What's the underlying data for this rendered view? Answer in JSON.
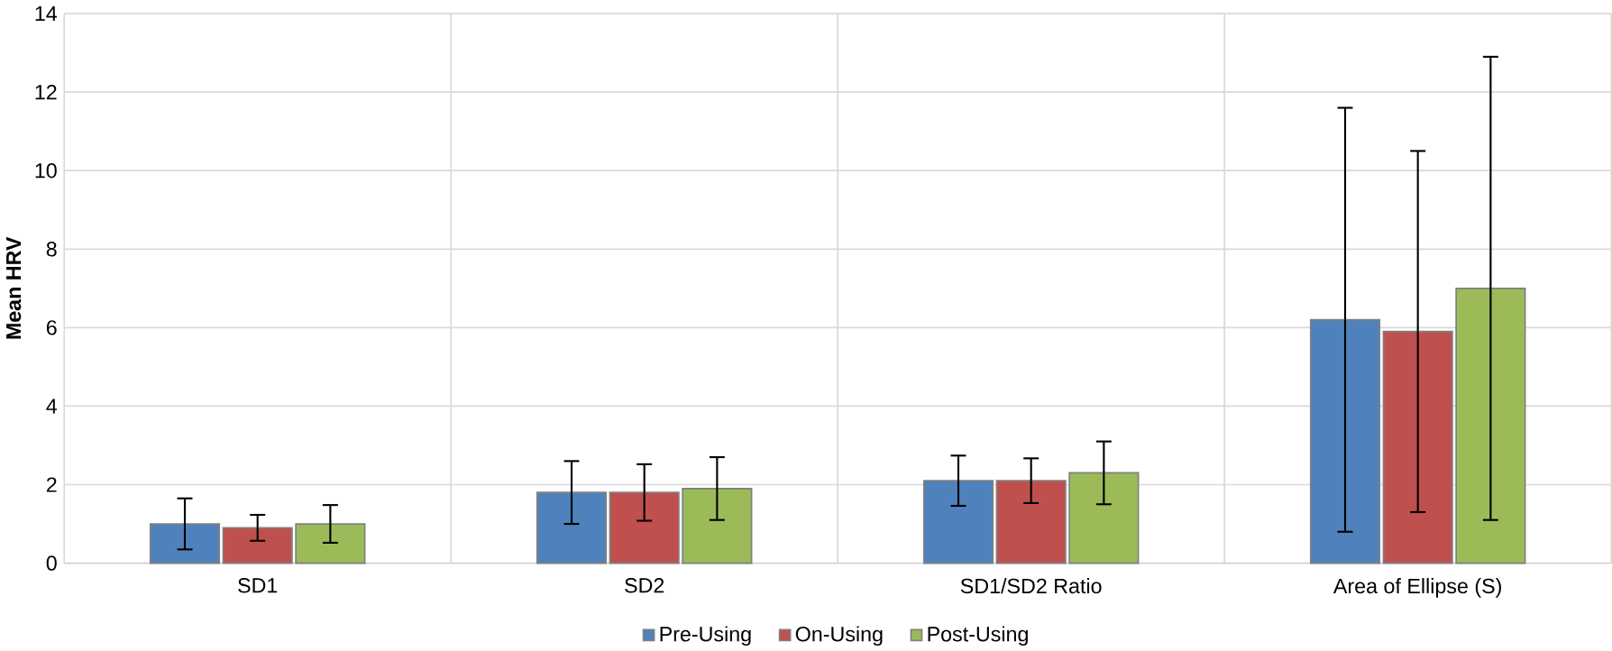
{
  "chart_data": {
    "type": "bar",
    "ylabel": "Mean HRV",
    "categories": [
      "SD1",
      "SD2",
      "SD1/SD2 Ratio",
      "Area of Ellipse (S)"
    ],
    "series": [
      {
        "name": "Pre-Using",
        "color": "#4f81bd",
        "values": [
          1.0,
          1.8,
          2.1,
          6.2
        ],
        "errors": [
          0.65,
          0.8,
          0.64,
          5.4
        ]
      },
      {
        "name": "On-Using",
        "color": "#c0504d",
        "values": [
          0.9,
          1.8,
          2.1,
          5.9
        ],
        "errors": [
          0.33,
          0.72,
          0.57,
          4.6
        ]
      },
      {
        "name": "Post-Using",
        "color": "#9bbb59",
        "values": [
          1.0,
          1.9,
          2.3,
          7.0
        ],
        "errors": [
          0.48,
          0.8,
          0.8,
          5.9
        ]
      }
    ],
    "ylim": [
      0,
      14
    ],
    "yticks": [
      0,
      2,
      4,
      6,
      8,
      10,
      12,
      14
    ],
    "grid": true,
    "legend": "bottom"
  }
}
